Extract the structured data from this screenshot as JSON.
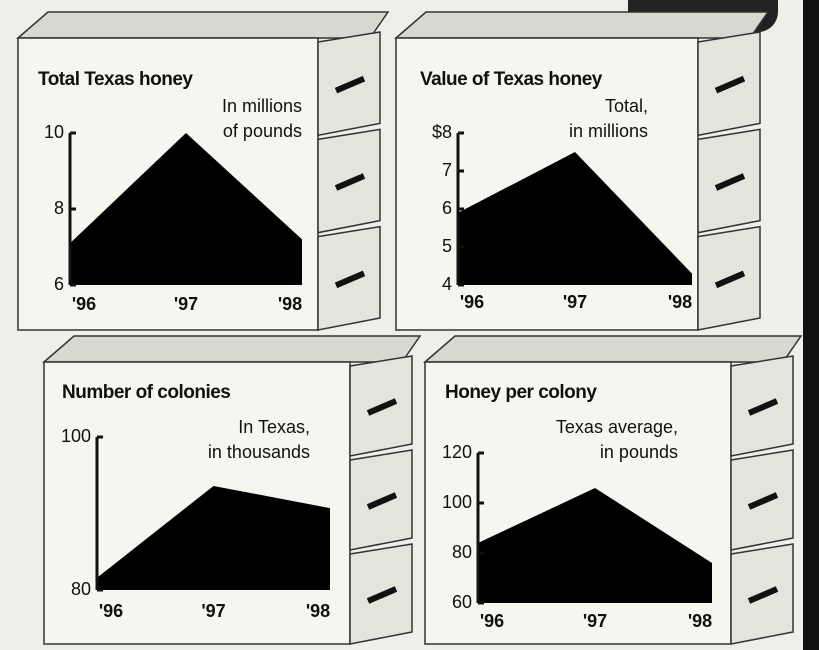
{
  "chart_data": [
    {
      "type": "area",
      "title": "Total Texas honey",
      "subtitle": [
        "In millions",
        "of pounds"
      ],
      "categories": [
        "'96",
        "'97",
        "'98"
      ],
      "values": [
        7.1,
        10,
        7.2
      ],
      "color": "#000000",
      "ylim": [
        6,
        10
      ],
      "yticks": [
        6,
        8,
        10
      ]
    },
    {
      "type": "area",
      "title": "Value of Texas honey",
      "subtitle": [
        "Total,",
        "in millions"
      ],
      "categories": [
        "'96",
        "'97",
        "'98"
      ],
      "values": [
        5.9,
        7.5,
        4.3
      ],
      "color": "#000000",
      "ylim": [
        4,
        8
      ],
      "yticks": [
        4,
        5,
        6,
        7,
        {
          "value": 8,
          "label": "$8"
        }
      ]
    },
    {
      "type": "area",
      "title": "Number of colonies",
      "subtitle": [
        "In Texas,",
        "in thousands"
      ],
      "categories": [
        "'96",
        "'97",
        "'98"
      ],
      "values": [
        81.6,
        93.6,
        90.7
      ],
      "color": "#000000",
      "ylim": [
        80,
        100
      ],
      "yticks": [
        80,
        100
      ]
    },
    {
      "type": "area",
      "title": "Honey per colony",
      "subtitle": [
        "Texas average,",
        "in pounds"
      ],
      "categories": [
        "'96",
        "'97",
        "'98"
      ],
      "values": [
        84,
        106,
        76
      ],
      "color": "#000000",
      "ylim": [
        60,
        120
      ],
      "yticks": [
        60,
        80,
        100,
        120
      ]
    }
  ]
}
